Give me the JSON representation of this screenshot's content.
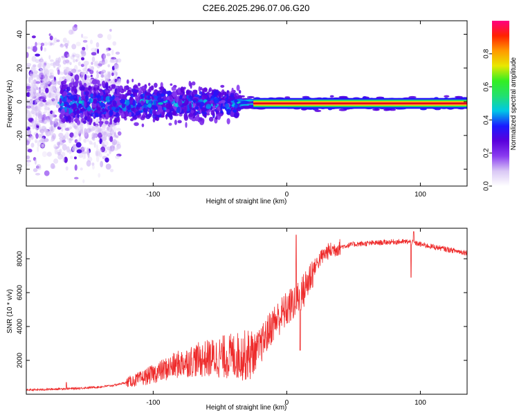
{
  "figure_title": "C2E6.2025.296.07.06.G20",
  "colors": {
    "axis": "#000000",
    "snr_line": "#ee2b2b",
    "ridge": "#cc0000",
    "colormap": [
      "#ffffff",
      "#d9c7f5",
      "#8a3cf0",
      "#5a00dc",
      "#1a1aff",
      "#00c8e6",
      "#22e070",
      "#33ee22",
      "#e8e800",
      "#ff9900",
      "#ff2200",
      "#ff0080"
    ]
  },
  "chart_data": [
    {
      "type": "heatmap",
      "title": "",
      "xlabel": "Height of straight line (km)",
      "ylabel": "Frequency (Hz)",
      "xlim": [
        -195,
        135
      ],
      "ylim": [
        -50,
        48
      ],
      "xticks": [
        -100,
        0,
        100
      ],
      "xtick_labels": [
        "-100",
        "0",
        "100"
      ],
      "yticks": [
        -40,
        -20,
        0,
        20,
        40
      ],
      "ytick_labels": [
        "-40",
        "-20",
        "0",
        "20",
        "40"
      ],
      "colorbar": {
        "label": "Normalized spectral amplitude",
        "range": [
          0,
          1
        ],
        "ticks": [
          0,
          0.2,
          0.4,
          0.6,
          0.8
        ],
        "tick_labels": [
          "0.0",
          "0.2",
          "0.4",
          "0.6",
          "0.8"
        ]
      },
      "bands": [
        {
          "x_range": [
            -195,
            -125
          ],
          "freq_halfwidth": 48,
          "amplitude": 0.05,
          "note": "diffuse noise region"
        },
        {
          "x_range": [
            -170,
            -35
          ],
          "freq_halfwidth": 15,
          "amplitude": 0.3,
          "note": "main scattered band"
        },
        {
          "x_range": [
            -35,
            135
          ],
          "freq_halfwidth": 4,
          "amplitude": 0.5,
          "note": "narrow carrier band"
        }
      ],
      "ridge": {
        "x_range": [
          -25,
          135
        ],
        "frequency": -1,
        "amplitude": 0.95
      }
    },
    {
      "type": "line",
      "title": "",
      "xlabel": "Height of straight line (km)",
      "ylabel": "SNR (10 * v/v)",
      "xlim": [
        -195,
        135
      ],
      "ylim": [
        0,
        9800
      ],
      "xticks": [
        -100,
        0,
        100
      ],
      "xtick_labels": [
        "-100",
        "0",
        "100"
      ],
      "yticks": [
        2000,
        4000,
        6000,
        8000
      ],
      "ytick_labels": [
        "2000",
        "4000",
        "6000",
        "8000"
      ],
      "series": [
        {
          "name": "SNR",
          "x": [
            -195,
            -180,
            -170,
            -160,
            -150,
            -140,
            -130,
            -120,
            -110,
            -100,
            -90,
            -80,
            -70,
            -60,
            -50,
            -40,
            -30,
            -25,
            -20,
            -15,
            -10,
            -5,
            0,
            5,
            10,
            12,
            15,
            20,
            25,
            30,
            40,
            50,
            60,
            70,
            80,
            90,
            95,
            100,
            110,
            120,
            135
          ],
          "y": [
            250,
            280,
            320,
            340,
            380,
            430,
            520,
            700,
            900,
            1200,
            1500,
            1800,
            2000,
            2100,
            2200,
            2250,
            2300,
            2400,
            2800,
            3500,
            4200,
            4600,
            5000,
            5400,
            5800,
            6000,
            6500,
            7400,
            8000,
            8400,
            8700,
            8850,
            8900,
            8950,
            9000,
            9000,
            8950,
            8850,
            8700,
            8550,
            8350
          ]
        }
      ],
      "spikes": [
        {
          "x": -165,
          "y": 700
        },
        {
          "x": 7,
          "y": 9400
        },
        {
          "x": 10,
          "y": 2600
        },
        {
          "x": 93,
          "y": 6900
        },
        {
          "x": 95,
          "y": 9600
        }
      ]
    }
  ]
}
